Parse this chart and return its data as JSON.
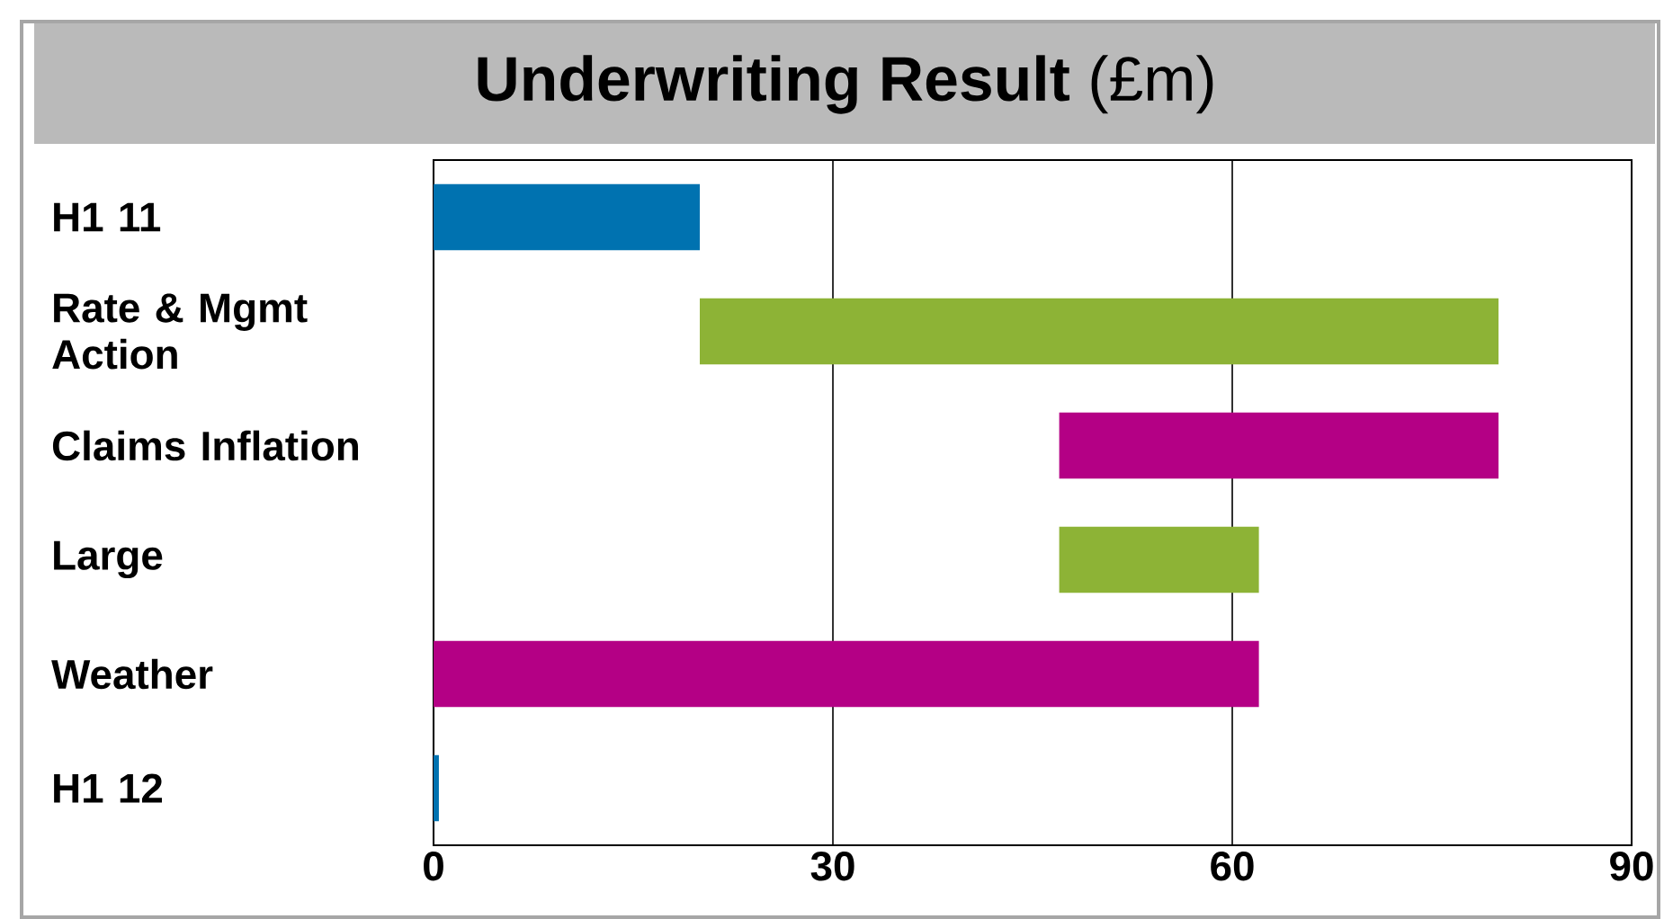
{
  "chart_data": {
    "type": "bar",
    "title": "**Underwriting Result** (£m)",
    "orientation": "horizontal",
    "categories": [
      "H1 11",
      "Rate & Mgmt Action",
      "Claims Inflation",
      "Large",
      "Weather",
      "H1 12"
    ],
    "base": [
      0,
      20,
      80,
      47,
      62,
      -0.5
    ],
    "values": [
      20,
      60,
      -33,
      15,
      -62,
      0.9
    ],
    "colors": [
      "#0072b0",
      "#8db336",
      "#b40085",
      "#8db336",
      "#b40085",
      "#0072b0"
    ],
    "xlim": [
      0,
      90
    ],
    "xticks": [
      0,
      30,
      60,
      90
    ],
    "grid": "x"
  }
}
